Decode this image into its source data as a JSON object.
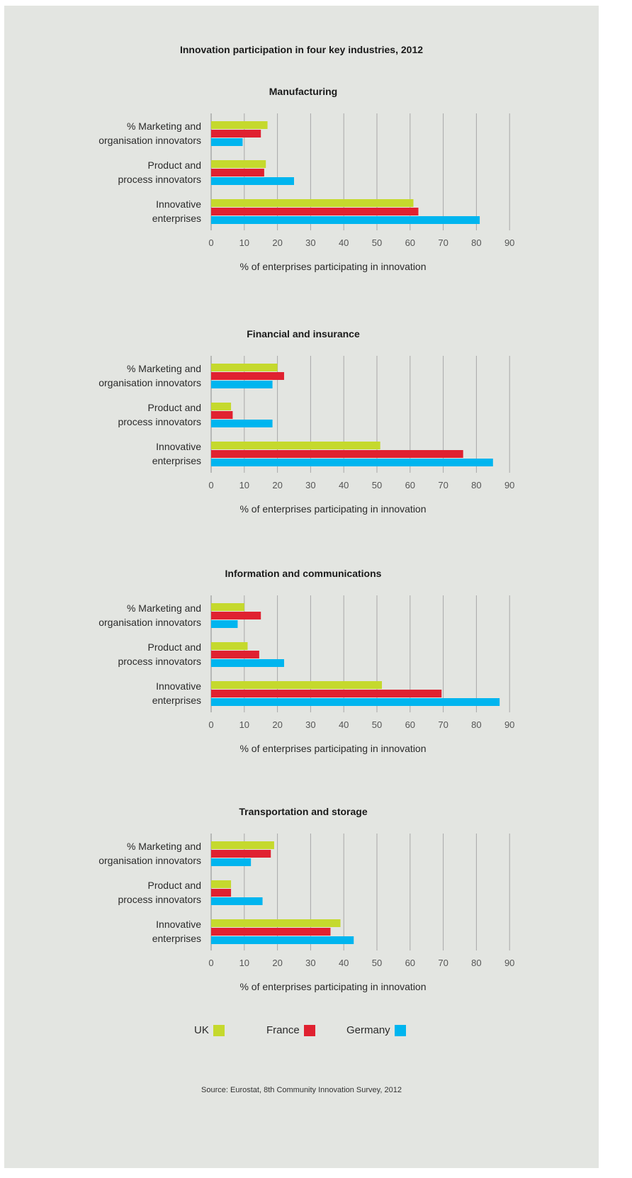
{
  "title": "Innovation participation in four key industries, 2012",
  "source": "Source: Eurostat, 8th Community Innovation Survey, 2012",
  "legend": [
    {
      "name": "UK",
      "color": "#c5d92d"
    },
    {
      "name": "France",
      "color": "#e02130"
    },
    {
      "name": "Germany",
      "color": "#00b5ef"
    }
  ],
  "chart_data": [
    {
      "type": "bar",
      "orientation": "horizontal",
      "title": "Manufacturing",
      "categories": [
        "% Marketing and\norganisation innovators",
        "Product and\nprocess innovators",
        "Innovative\nenterprises"
      ],
      "series": [
        {
          "name": "UK",
          "color": "#c5d92d",
          "values": [
            17,
            16.5,
            61
          ]
        },
        {
          "name": "France",
          "color": "#e02130",
          "values": [
            15,
            16,
            62.5
          ]
        },
        {
          "name": "Germany",
          "color": "#00b5ef",
          "values": [
            9.5,
            25,
            81
          ]
        }
      ],
      "xlim": [
        0,
        90
      ],
      "xticks": [
        0,
        10,
        20,
        30,
        40,
        50,
        60,
        70,
        80,
        90
      ],
      "xlabel": "% of enterprises participating in innovation",
      "grid": true
    },
    {
      "type": "bar",
      "orientation": "horizontal",
      "title": "Financial and insurance",
      "categories": [
        "% Marketing and\norganisation innovators",
        "Product and\nprocess innovators",
        "Innovative\nenterprises"
      ],
      "series": [
        {
          "name": "UK",
          "color": "#c5d92d",
          "values": [
            20,
            6,
            51
          ]
        },
        {
          "name": "France",
          "color": "#e02130",
          "values": [
            22,
            6.5,
            76
          ]
        },
        {
          "name": "Germany",
          "color": "#00b5ef",
          "values": [
            18.5,
            18.5,
            85
          ]
        }
      ],
      "xlim": [
        0,
        90
      ],
      "xticks": [
        0,
        10,
        20,
        30,
        40,
        50,
        60,
        70,
        80,
        90
      ],
      "xlabel": "% of enterprises participating in innovation",
      "grid": true
    },
    {
      "type": "bar",
      "orientation": "horizontal",
      "title": "Information and communications",
      "categories": [
        "% Marketing and\norganisation innovators",
        "Product and\nprocess innovators",
        "Innovative\nenterprises"
      ],
      "series": [
        {
          "name": "UK",
          "color": "#c5d92d",
          "values": [
            10,
            11,
            51.5
          ]
        },
        {
          "name": "France",
          "color": "#e02130",
          "values": [
            15,
            14.5,
            69.5
          ]
        },
        {
          "name": "Germany",
          "color": "#00b5ef",
          "values": [
            8,
            22,
            87
          ]
        }
      ],
      "xlim": [
        0,
        90
      ],
      "xticks": [
        0,
        10,
        20,
        30,
        40,
        50,
        60,
        70,
        80,
        90
      ],
      "xlabel": "% of enterprises participating in innovation",
      "grid": true
    },
    {
      "type": "bar",
      "orientation": "horizontal",
      "title": "Transportation and storage",
      "categories": [
        "% Marketing and\norganisation innovators",
        "Product and\nprocess innovators",
        "Innovative\nenterprises"
      ],
      "series": [
        {
          "name": "UK",
          "color": "#c5d92d",
          "values": [
            19,
            6,
            39
          ]
        },
        {
          "name": "France",
          "color": "#e02130",
          "values": [
            18,
            6,
            36
          ]
        },
        {
          "name": "Germany",
          "color": "#00b5ef",
          "values": [
            12,
            15.5,
            43
          ]
        }
      ],
      "xlim": [
        0,
        90
      ],
      "xticks": [
        0,
        10,
        20,
        30,
        40,
        50,
        60,
        70,
        80,
        90
      ],
      "xlabel": "% of enterprises participating in innovation",
      "grid": true
    }
  ]
}
